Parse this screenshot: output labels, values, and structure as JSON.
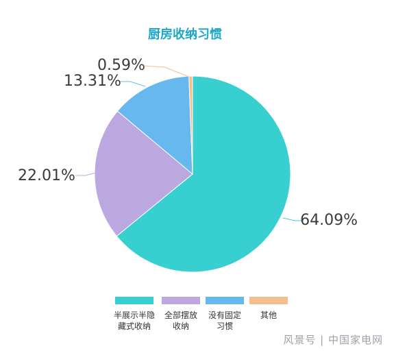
{
  "chart_data": {
    "type": "pie",
    "title": "厨房收纳习惯",
    "categories": [
      "半展示半隐藏式收纳",
      "全部摆放收纳",
      "没有固定习惯",
      "其他"
    ],
    "legend_lines": [
      [
        "半展示半隐",
        "藏式收纳"
      ],
      [
        "全部摆放",
        "收纳"
      ],
      [
        "没有固定",
        "习惯"
      ],
      [
        "其他"
      ]
    ],
    "values": [
      64.09,
      22.01,
      13.31,
      0.59
    ],
    "labels": [
      "64.09%",
      "22.01%",
      "13.31%",
      "0.59%"
    ],
    "colors": [
      "#38cfd0",
      "#bba8e0",
      "#67b8ef",
      "#f5bf8d"
    ],
    "legend_position": "bottom"
  },
  "watermark": "风景号 | 中国家电网"
}
